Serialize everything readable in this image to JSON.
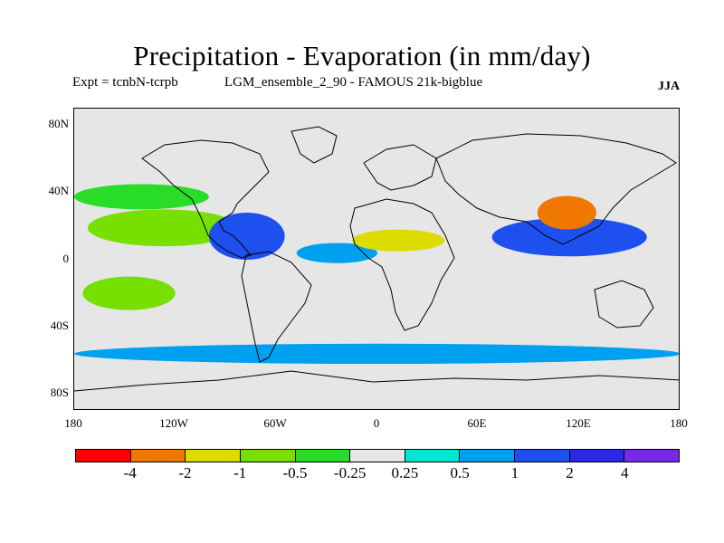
{
  "title": "Precipitation - Evaporation (in mm/day)",
  "experiment": "Expt = tcnbN-tcrpb",
  "run": "LGM_ensemble_2_90 - FAMOUS 21k-bigblue",
  "season": "JJA",
  "axes": {
    "y_ticks": [
      "80N",
      "40N",
      "0",
      "40S",
      "80S"
    ],
    "x_ticks": [
      "180",
      "120W",
      "60W",
      "0",
      "60E",
      "120E",
      "180"
    ]
  },
  "colorbar": {
    "colors": [
      "#ff0000",
      "#f07800",
      "#dcdc00",
      "#78e000",
      "#28dc28",
      "#e6e6e6",
      "#00e6d2",
      "#00a0f0",
      "#1e50f0",
      "#2828e6",
      "#7828e6"
    ],
    "labels": [
      "-4",
      "-2",
      "-1",
      "-0.5",
      "-0.25",
      "0.25",
      "0.5",
      "1",
      "2",
      "4"
    ]
  },
  "map": {
    "background": "#e6e6e6",
    "regions": [
      {
        "name": "subtropical-pacific-dry",
        "lon": [
          -172,
          -82
        ],
        "lat": [
          8,
          30
        ],
        "level": 3
      },
      {
        "name": "central-america-wet",
        "lon": [
          -100,
          -55
        ],
        "lat": [
          0,
          28
        ],
        "level": 8
      },
      {
        "name": "indian-monsoon-wet",
        "lon": [
          68,
          160
        ],
        "lat": [
          2,
          25
        ],
        "level": 8
      },
      {
        "name": "equatorial-atlantic-wet",
        "lon": [
          -48,
          0
        ],
        "lat": [
          -2,
          10
        ],
        "level": 7
      },
      {
        "name": "sahel-dry",
        "lon": [
          -15,
          40
        ],
        "lat": [
          5,
          18
        ],
        "level": 2
      },
      {
        "name": "east-asia-dry",
        "lon": [
          95,
          130
        ],
        "lat": [
          18,
          38
        ],
        "level": 1
      },
      {
        "name": "north-pacific-dry",
        "lon": [
          -180,
          -100
        ],
        "lat": [
          30,
          45
        ],
        "level": 4
      },
      {
        "name": "southern-ocean-wet",
        "lon": [
          -180,
          180
        ],
        "lat": [
          -62,
          -50
        ],
        "level": 7
      },
      {
        "name": "south-pacific-dry",
        "lon": [
          -175,
          -120
        ],
        "lat": [
          -30,
          -10
        ],
        "level": 3
      }
    ]
  }
}
